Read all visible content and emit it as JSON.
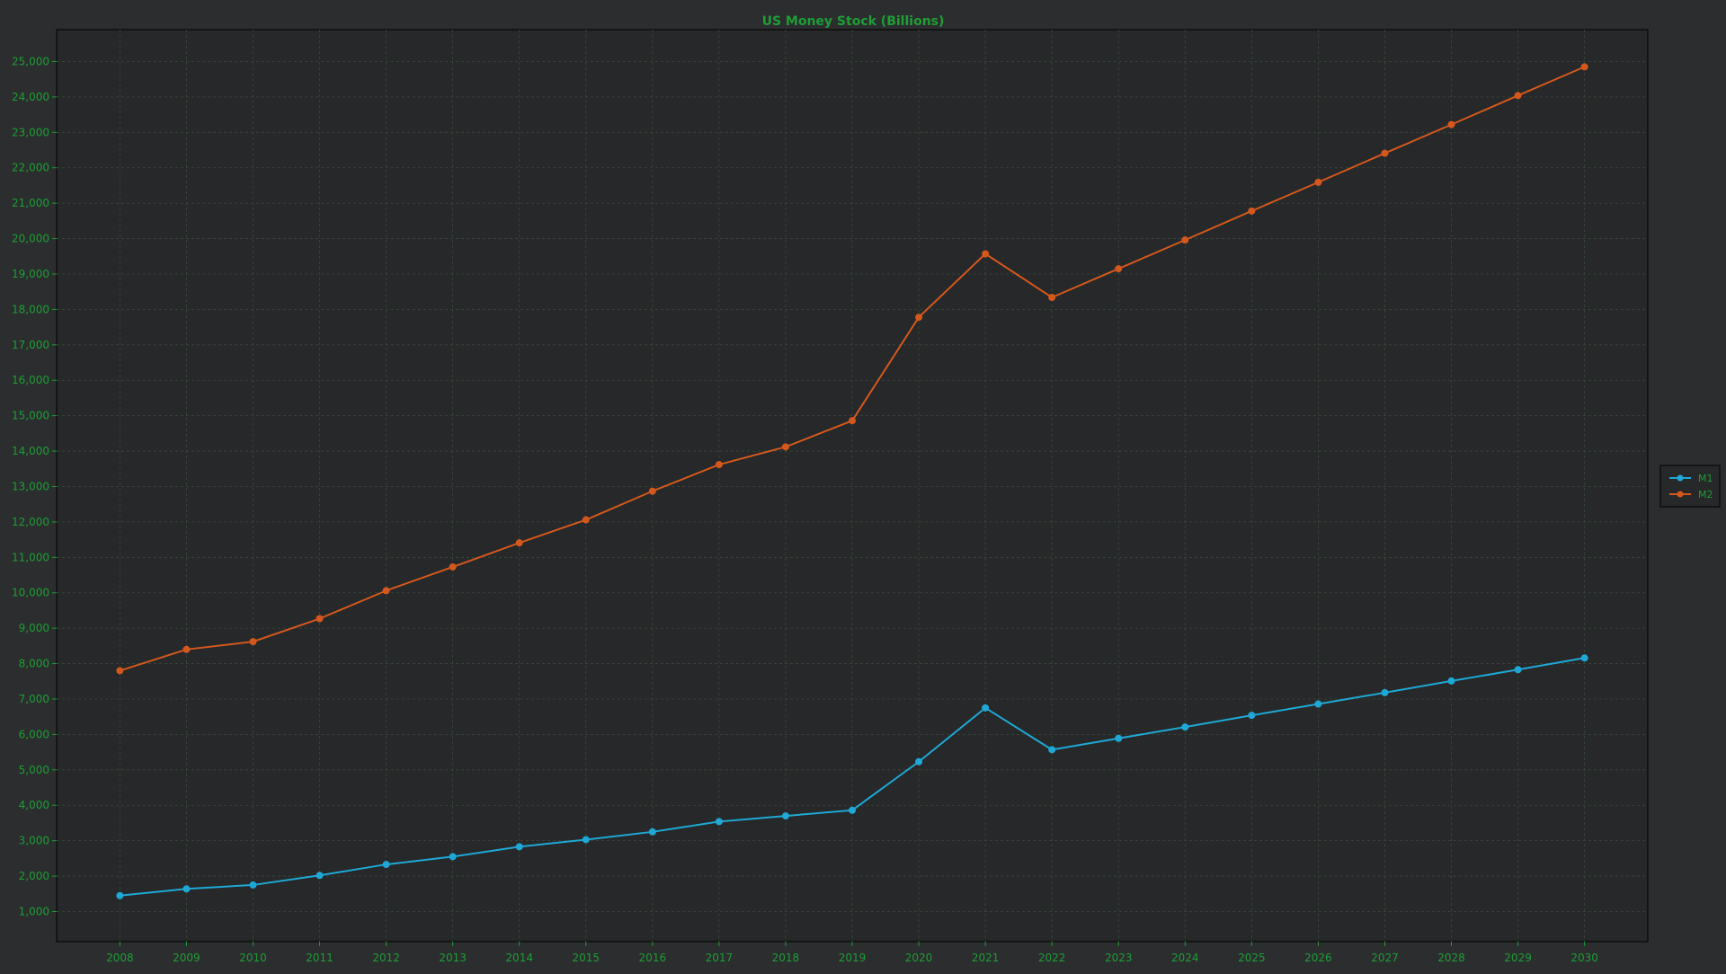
{
  "chart_data": {
    "type": "line",
    "title": "US Money Stock (Billions)",
    "xlabel": "",
    "ylabel": "",
    "x": [
      2008,
      2009,
      2010,
      2011,
      2012,
      2013,
      2014,
      2015,
      2016,
      2017,
      2018,
      2019,
      2020,
      2021,
      2022,
      2023,
      2024,
      2025,
      2026,
      2027,
      2028,
      2029,
      2030
    ],
    "series": [
      {
        "name": "M1",
        "color": "#1fa8d6",
        "values": [
          1450,
          1640,
          1750,
          2020,
          2330,
          2550,
          2830,
          3030,
          3250,
          3540,
          3700,
          3860,
          5230,
          6750,
          5570,
          5890,
          6210,
          6540,
          6860,
          7180,
          7510,
          7830,
          8160
        ]
      },
      {
        "name": "M2",
        "color": "#d4581e",
        "values": [
          7800,
          8400,
          8620,
          9270,
          10060,
          10730,
          11410,
          12060,
          12870,
          13620,
          14120,
          14860,
          17780,
          19570,
          18340,
          19150,
          19960,
          20780,
          21590,
          22410,
          23220,
          24040,
          24850
        ]
      }
    ],
    "yticks": [
      1000,
      2000,
      3000,
      4000,
      5000,
      6000,
      7000,
      8000,
      9000,
      10000,
      11000,
      12000,
      13000,
      14000,
      15000,
      16000,
      17000,
      18000,
      19000,
      20000,
      21000,
      22000,
      23000,
      24000,
      25000
    ],
    "ylim": [
      150,
      25900
    ],
    "xlim": [
      2007.05,
      2030.95
    ],
    "grid": true,
    "legend_position": "right",
    "colors": {
      "background": "#2b2d2f",
      "plot_background": "#262829",
      "text": "#1e9e34",
      "grid": "#3a4a3a",
      "frame": "#000000"
    }
  }
}
